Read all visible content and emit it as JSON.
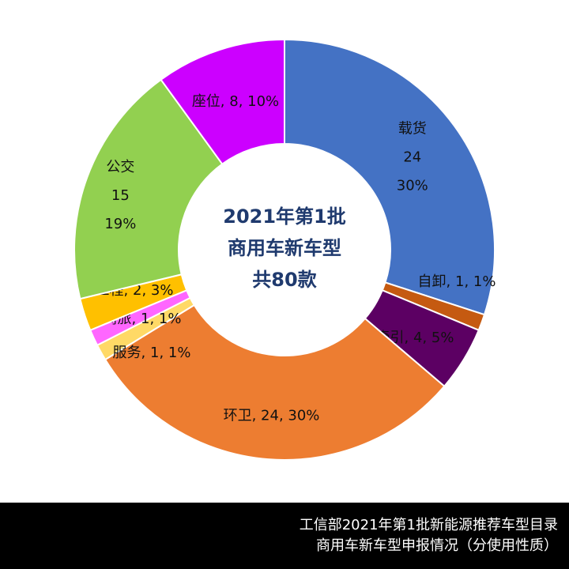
{
  "chart_data": {
    "type": "pie",
    "donut": true,
    "center_lines": [
      "2021年第1批",
      "商用车新车型",
      "共80款"
    ],
    "slices": [
      {
        "name": "载货",
        "value": 24,
        "percent": "30%",
        "color": "#4472c4",
        "label": [
          "载货",
          "24",
          "30%"
        ]
      },
      {
        "name": "自卸",
        "value": 1,
        "percent": "1%",
        "color": "#c55a11",
        "label": [
          "自卸, 1, 1%"
        ]
      },
      {
        "name": "牵引",
        "value": 4,
        "percent": "5%",
        "color": "#5c0063",
        "label": [
          "牵引, 4, 5%"
        ]
      },
      {
        "name": "环卫",
        "value": 24,
        "percent": "30%",
        "color": "#ed7d31",
        "label": [
          "环卫, 24, 30%"
        ]
      },
      {
        "name": "服务",
        "value": 1,
        "percent": "1%",
        "color": "#ffd966",
        "label": [
          "服务, 1, 1%"
        ]
      },
      {
        "name": "商旅",
        "value": 1,
        "percent": "1%",
        "color": "#ff66ff",
        "label": [
          "商旅, 1, 1%"
        ]
      },
      {
        "name": "工程",
        "value": 2,
        "percent": "3%",
        "color": "#ffc000",
        "label": [
          "工程, 2, 3%"
        ]
      },
      {
        "name": "公交",
        "value": 15,
        "percent": "19%",
        "color": "#92d050",
        "label": [
          "公交",
          "15",
          "19%"
        ]
      },
      {
        "name": "座位",
        "value": 8,
        "percent": "10%",
        "color": "#cc00ff",
        "label": [
          "座位, 8, 10%"
        ]
      }
    ]
  },
  "footer": {
    "line1": "工信部2021年第1批新能源推荐车型目录",
    "line2": "商用车新车型申报情况（分使用性质）"
  }
}
